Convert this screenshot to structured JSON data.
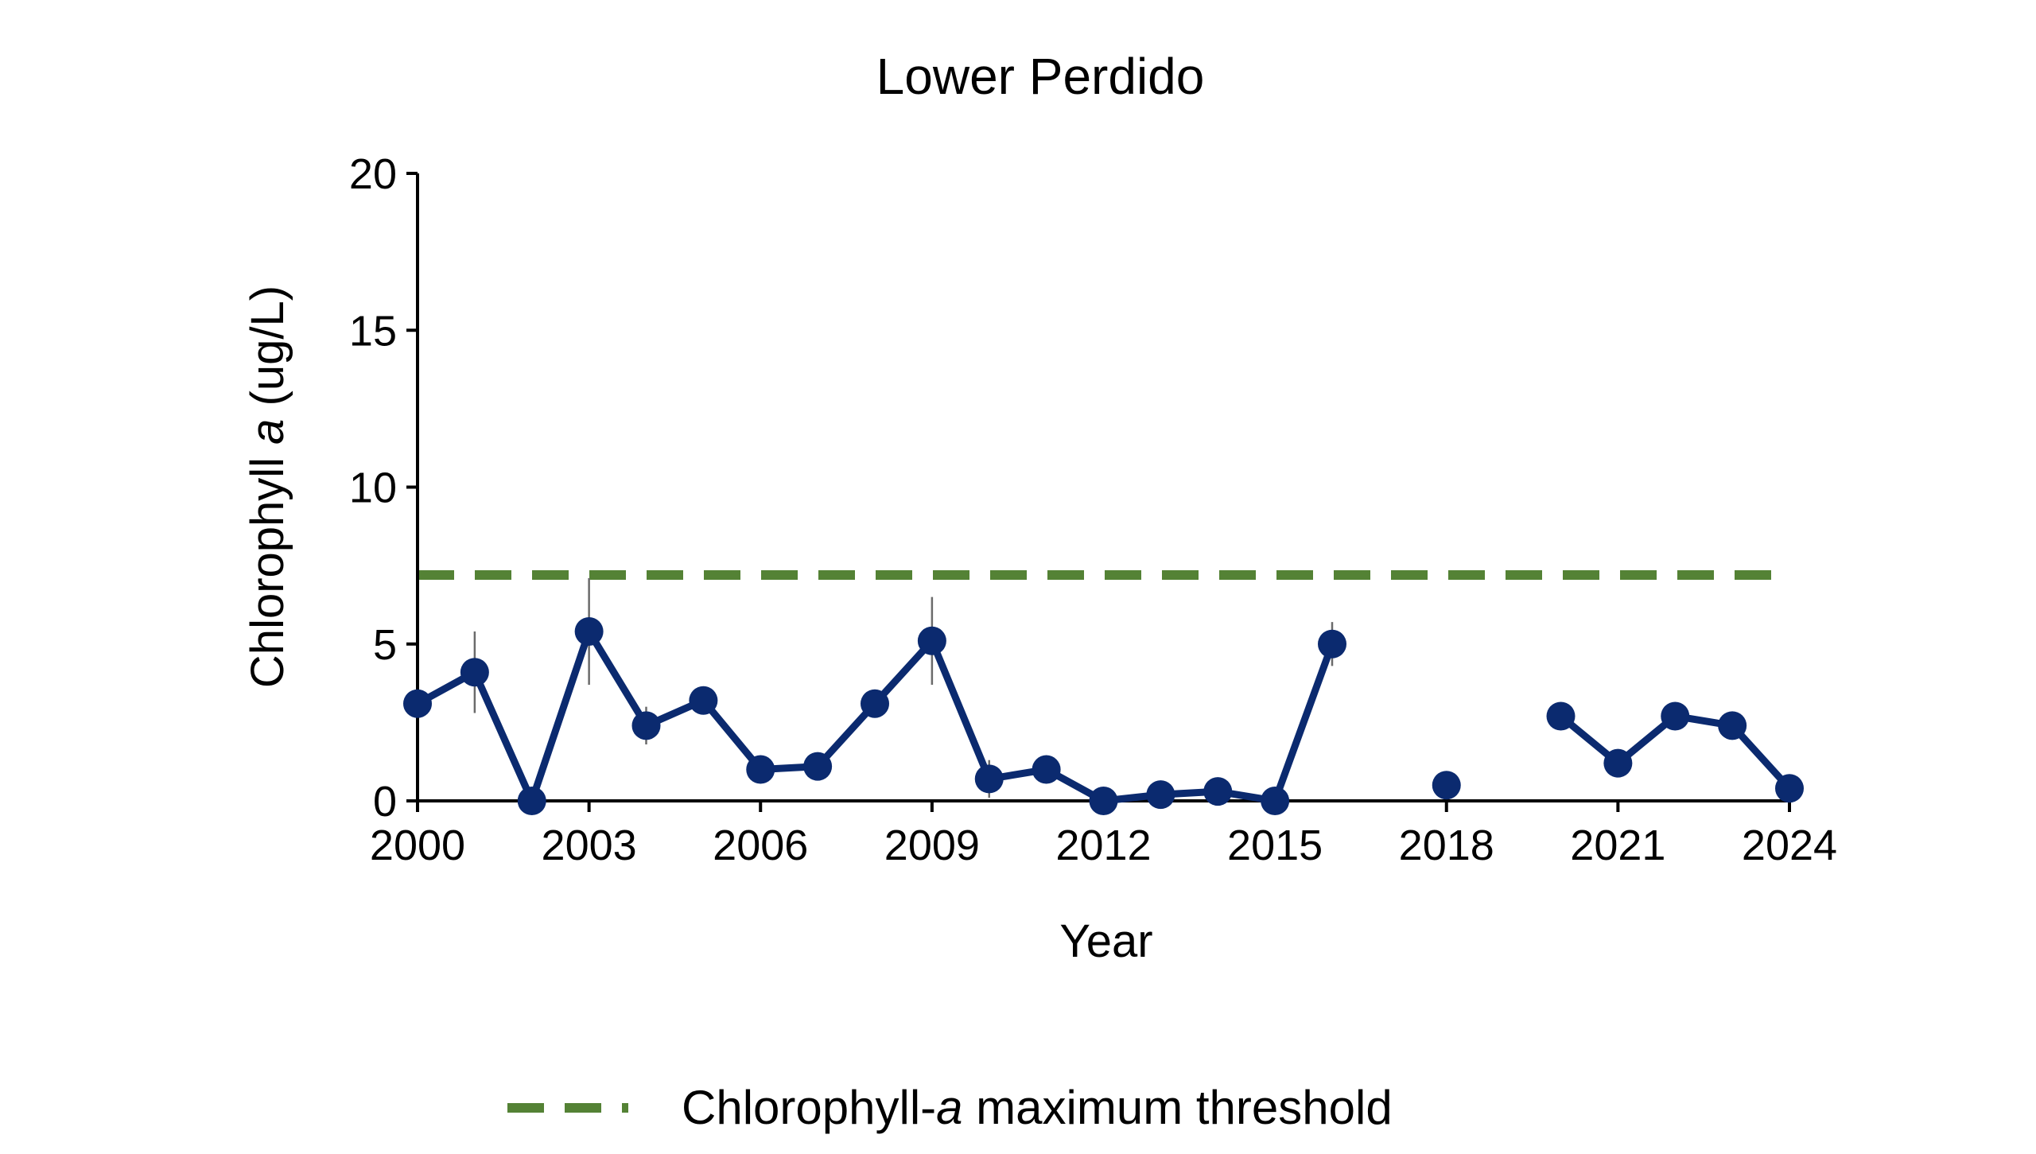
{
  "chart_data": {
    "type": "line",
    "title": "Lower Perdido",
    "xlabel": "Year",
    "ylabel": {
      "prefix": "Chlorophyll ",
      "italic": "a",
      "suffix": " (ug/L)"
    },
    "xlim": [
      2000,
      2024
    ],
    "ylim": [
      0,
      20
    ],
    "x_ticks": [
      "2000",
      "2003",
      "2006",
      "2009",
      "2012",
      "2015",
      "2018",
      "2021",
      "2024"
    ],
    "y_ticks": [
      "0",
      "5",
      "10",
      "15",
      "20"
    ],
    "grid": false,
    "legend_position": "bottom",
    "series": [
      {
        "values": [
          {
            "x": 2000,
            "y": 3.1
          },
          {
            "x": 2001,
            "y": 4.1,
            "err": 1.3
          },
          {
            "x": 2002,
            "y": 0.0
          },
          {
            "x": 2003,
            "y": 5.4,
            "err": 1.7
          },
          {
            "x": 2004,
            "y": 2.4,
            "err": 0.6
          },
          {
            "x": 2005,
            "y": 3.2
          },
          {
            "x": 2006,
            "y": 1.0
          },
          {
            "x": 2007,
            "y": 1.1
          },
          {
            "x": 2008,
            "y": 3.1
          },
          {
            "x": 2009,
            "y": 5.1,
            "err": 1.4
          },
          {
            "x": 2010,
            "y": 0.7,
            "err": 0.6
          },
          {
            "x": 2011,
            "y": 1.0
          },
          {
            "x": 2012,
            "y": 0.0
          },
          {
            "x": 2013,
            "y": 0.2
          },
          {
            "x": 2014,
            "y": 0.3
          },
          {
            "x": 2015,
            "y": 0.0
          },
          {
            "x": 2016,
            "y": 5.0,
            "err": 0.7
          },
          {
            "x": 2018,
            "y": 0.5
          },
          {
            "x": 2020,
            "y": 2.7
          },
          {
            "x": 2021,
            "y": 1.2
          },
          {
            "x": 2022,
            "y": 2.7
          },
          {
            "x": 2023,
            "y": 2.4
          },
          {
            "x": 2024,
            "y": 0.4
          }
        ],
        "color": "#0b2a6f"
      }
    ],
    "threshold": {
      "name": {
        "prefix": "Chlorophyll-",
        "italic": "a",
        "suffix": " maximum threshold"
      },
      "y": 7.2,
      "color": "#548235"
    },
    "errorbar_color": "#6b6b6b"
  }
}
